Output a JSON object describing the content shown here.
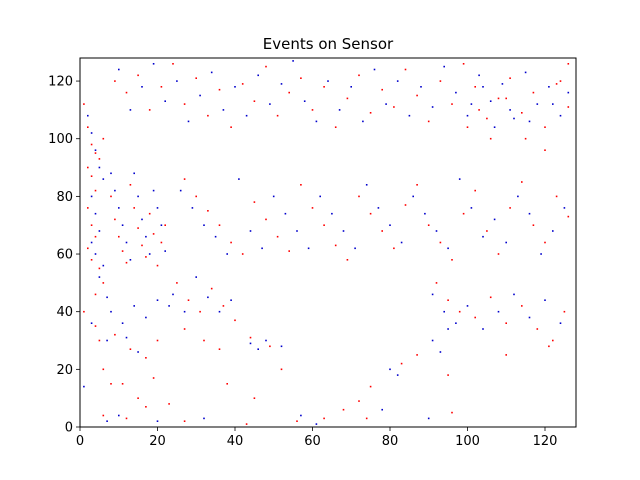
{
  "chart_data": {
    "type": "scatter",
    "title": "Events on Sensor",
    "xlabel": "",
    "ylabel": "",
    "xlim": [
      0,
      128
    ],
    "ylim": [
      0,
      128
    ],
    "x_ticks": [
      0,
      20,
      40,
      60,
      80,
      100,
      120
    ],
    "y_ticks": [
      0,
      20,
      40,
      60,
      80,
      100,
      120
    ],
    "grid": false,
    "legend": "none",
    "series": [
      {
        "polarity": "positive",
        "color": "#ff0000",
        "points": [
          [
            1,
            112
          ],
          [
            2,
            104
          ],
          [
            3,
            98
          ],
          [
            4,
            95
          ],
          [
            5,
            93
          ],
          [
            6,
            100
          ],
          [
            2,
            90
          ],
          [
            3,
            87
          ],
          [
            4,
            82
          ],
          [
            2,
            76
          ],
          [
            3,
            70
          ],
          [
            4,
            66
          ],
          [
            2,
            62
          ],
          [
            3,
            58
          ],
          [
            5,
            55
          ],
          [
            6,
            50
          ],
          [
            4,
            46
          ],
          [
            8,
            80
          ],
          [
            9,
            72
          ],
          [
            10,
            66
          ],
          [
            11,
            61
          ],
          [
            12,
            57
          ],
          [
            13,
            84
          ],
          [
            14,
            76
          ],
          [
            15,
            69
          ],
          [
            16,
            63
          ],
          [
            17,
            59
          ],
          [
            18,
            74
          ],
          [
            19,
            67
          ],
          [
            20,
            56
          ],
          [
            21,
            64
          ],
          [
            22,
            70
          ],
          [
            9,
            120
          ],
          [
            12,
            116
          ],
          [
            15,
            122
          ],
          [
            18,
            110
          ],
          [
            21,
            118
          ],
          [
            24,
            126
          ],
          [
            27,
            112
          ],
          [
            30,
            121
          ],
          [
            33,
            108
          ],
          [
            36,
            117
          ],
          [
            39,
            104
          ],
          [
            42,
            119
          ],
          [
            45,
            113
          ],
          [
            48,
            125
          ],
          [
            51,
            108
          ],
          [
            54,
            116
          ],
          [
            57,
            121
          ],
          [
            60,
            110
          ],
          [
            63,
            118
          ],
          [
            66,
            104
          ],
          [
            69,
            114
          ],
          [
            72,
            122
          ],
          [
            75,
            109
          ],
          [
            78,
            117
          ],
          [
            81,
            111
          ],
          [
            84,
            124
          ],
          [
            87,
            115
          ],
          [
            90,
            106
          ],
          [
            93,
            120
          ],
          [
            96,
            112
          ],
          [
            99,
            126
          ],
          [
            102,
            118
          ],
          [
            105,
            107
          ],
          [
            108,
            114
          ],
          [
            111,
            121
          ],
          [
            114,
            109
          ],
          [
            117,
            116
          ],
          [
            120,
            104
          ],
          [
            123,
            119
          ],
          [
            126,
            111
          ],
          [
            100,
            104
          ],
          [
            103,
            110
          ],
          [
            106,
            100
          ],
          [
            110,
            114
          ],
          [
            115,
            100
          ],
          [
            120,
            96
          ],
          [
            124,
            120
          ],
          [
            126,
            126
          ],
          [
            27,
            86
          ],
          [
            30,
            80
          ],
          [
            33,
            75
          ],
          [
            36,
            70
          ],
          [
            39,
            64
          ],
          [
            42,
            60
          ],
          [
            45,
            78
          ],
          [
            48,
            72
          ],
          [
            51,
            66
          ],
          [
            54,
            61
          ],
          [
            57,
            84
          ],
          [
            60,
            76
          ],
          [
            63,
            70
          ],
          [
            66,
            63
          ],
          [
            69,
            58
          ],
          [
            72,
            80
          ],
          [
            75,
            74
          ],
          [
            78,
            68
          ],
          [
            81,
            62
          ],
          [
            84,
            77
          ],
          [
            87,
            84
          ],
          [
            90,
            70
          ],
          [
            93,
            64
          ],
          [
            96,
            58
          ],
          [
            99,
            74
          ],
          [
            102,
            82
          ],
          [
            105,
            68
          ],
          [
            108,
            60
          ],
          [
            111,
            76
          ],
          [
            114,
            85
          ],
          [
            117,
            70
          ],
          [
            120,
            64
          ],
          [
            123,
            80
          ],
          [
            126,
            73
          ],
          [
            25,
            50
          ],
          [
            28,
            44
          ],
          [
            31,
            40
          ],
          [
            34,
            48
          ],
          [
            37,
            42
          ],
          [
            40,
            37
          ],
          [
            92,
            50
          ],
          [
            95,
            44
          ],
          [
            98,
            40
          ],
          [
            102,
            38
          ],
          [
            106,
            45
          ],
          [
            110,
            36
          ],
          [
            114,
            42
          ],
          [
            118,
            34
          ],
          [
            122,
            30
          ],
          [
            125,
            40
          ],
          [
            5,
            30
          ],
          [
            9,
            32
          ],
          [
            13,
            27
          ],
          [
            17,
            24
          ],
          [
            20,
            30
          ],
          [
            27,
            34
          ],
          [
            32,
            30
          ],
          [
            36,
            27
          ],
          [
            44,
            31
          ],
          [
            49,
            28
          ],
          [
            6,
            20
          ],
          [
            8,
            15
          ],
          [
            11,
            15
          ],
          [
            15,
            10
          ],
          [
            19,
            17
          ],
          [
            23,
            8
          ],
          [
            38,
            15
          ],
          [
            45,
            10
          ],
          [
            52,
            20
          ],
          [
            68,
            6
          ],
          [
            75,
            14
          ],
          [
            83,
            22
          ],
          [
            87,
            25
          ],
          [
            95,
            18
          ],
          [
            110,
            25
          ],
          [
            121,
            28
          ],
          [
            6,
            4
          ],
          [
            12,
            3
          ],
          [
            17,
            7
          ],
          [
            27,
            2
          ],
          [
            43,
            1
          ],
          [
            56,
            2
          ],
          [
            63,
            3
          ],
          [
            72,
            9
          ],
          [
            74,
            3
          ],
          [
            96,
            5
          ],
          [
            1,
            40
          ],
          [
            4,
            35
          ]
        ]
      },
      {
        "polarity": "negative",
        "color": "#0000cc",
        "points": [
          [
            2,
            108
          ],
          [
            3,
            102
          ],
          [
            4,
            96
          ],
          [
            5,
            90
          ],
          [
            6,
            86
          ],
          [
            3,
            80
          ],
          [
            4,
            74
          ],
          [
            5,
            68
          ],
          [
            3,
            64
          ],
          [
            4,
            60
          ],
          [
            6,
            56
          ],
          [
            5,
            52
          ],
          [
            7,
            45
          ],
          [
            8,
            88
          ],
          [
            9,
            82
          ],
          [
            10,
            76
          ],
          [
            11,
            70
          ],
          [
            12,
            64
          ],
          [
            13,
            58
          ],
          [
            14,
            88
          ],
          [
            15,
            80
          ],
          [
            16,
            72
          ],
          [
            17,
            66
          ],
          [
            18,
            60
          ],
          [
            19,
            82
          ],
          [
            20,
            76
          ],
          [
            21,
            70
          ],
          [
            22,
            61
          ],
          [
            10,
            124
          ],
          [
            13,
            110
          ],
          [
            16,
            118
          ],
          [
            19,
            126
          ],
          [
            22,
            113
          ],
          [
            25,
            120
          ],
          [
            28,
            106
          ],
          [
            31,
            115
          ],
          [
            34,
            123
          ],
          [
            37,
            110
          ],
          [
            40,
            118
          ],
          [
            43,
            108
          ],
          [
            46,
            122
          ],
          [
            49,
            112
          ],
          [
            52,
            119
          ],
          [
            55,
            127
          ],
          [
            58,
            113
          ],
          [
            61,
            106
          ],
          [
            64,
            120
          ],
          [
            67,
            110
          ],
          [
            70,
            118
          ],
          [
            73,
            106
          ],
          [
            76,
            124
          ],
          [
            79,
            112
          ],
          [
            82,
            120
          ],
          [
            85,
            108
          ],
          [
            88,
            118
          ],
          [
            91,
            111
          ],
          [
            94,
            125
          ],
          [
            97,
            116
          ],
          [
            100,
            108
          ],
          [
            103,
            122
          ],
          [
            106,
            113
          ],
          [
            109,
            119
          ],
          [
            112,
            107
          ],
          [
            115,
            123
          ],
          [
            118,
            112
          ],
          [
            121,
            118
          ],
          [
            124,
            108
          ],
          [
            126,
            116
          ],
          [
            101,
            112
          ],
          [
            104,
            118
          ],
          [
            107,
            104
          ],
          [
            111,
            110
          ],
          [
            116,
            106
          ],
          [
            122,
            112
          ],
          [
            26,
            82
          ],
          [
            29,
            76
          ],
          [
            32,
            70
          ],
          [
            35,
            66
          ],
          [
            38,
            60
          ],
          [
            41,
            86
          ],
          [
            44,
            68
          ],
          [
            47,
            62
          ],
          [
            50,
            80
          ],
          [
            53,
            74
          ],
          [
            56,
            68
          ],
          [
            59,
            62
          ],
          [
            62,
            80
          ],
          [
            65,
            74
          ],
          [
            68,
            68
          ],
          [
            71,
            62
          ],
          [
            74,
            84
          ],
          [
            77,
            76
          ],
          [
            80,
            70
          ],
          [
            83,
            64
          ],
          [
            86,
            80
          ],
          [
            89,
            74
          ],
          [
            92,
            68
          ],
          [
            95,
            62
          ],
          [
            98,
            86
          ],
          [
            101,
            76
          ],
          [
            104,
            66
          ],
          [
            107,
            72
          ],
          [
            110,
            64
          ],
          [
            113,
            80
          ],
          [
            116,
            74
          ],
          [
            119,
            60
          ],
          [
            122,
            68
          ],
          [
            125,
            76
          ],
          [
            24,
            46
          ],
          [
            27,
            40
          ],
          [
            30,
            52
          ],
          [
            33,
            45
          ],
          [
            36,
            40
          ],
          [
            39,
            44
          ],
          [
            91,
            46
          ],
          [
            94,
            40
          ],
          [
            97,
            36
          ],
          [
            100,
            42
          ],
          [
            104,
            34
          ],
          [
            108,
            40
          ],
          [
            112,
            46
          ],
          [
            116,
            38
          ],
          [
            120,
            44
          ],
          [
            124,
            36
          ],
          [
            8,
            40
          ],
          [
            11,
            36
          ],
          [
            14,
            42
          ],
          [
            17,
            38
          ],
          [
            20,
            44
          ],
          [
            23,
            42
          ],
          [
            91,
            30
          ],
          [
            93,
            26
          ],
          [
            95,
            34
          ],
          [
            7,
            30
          ],
          [
            12,
            31
          ],
          [
            15,
            26
          ],
          [
            44,
            29
          ],
          [
            46,
            27
          ],
          [
            48,
            30
          ],
          [
            52,
            28
          ],
          [
            80,
            20
          ],
          [
            82,
            18
          ],
          [
            7,
            2
          ],
          [
            10,
            4
          ],
          [
            20,
            2
          ],
          [
            32,
            3
          ],
          [
            57,
            4
          ],
          [
            61,
            1
          ],
          [
            78,
            6
          ],
          [
            90,
            3
          ],
          [
            3,
            36
          ],
          [
            1,
            14
          ]
        ]
      }
    ]
  }
}
